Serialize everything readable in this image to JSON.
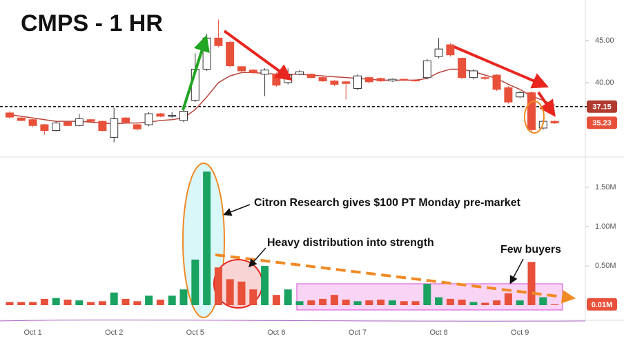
{
  "chart_data": [
    {
      "type": "candlestick",
      "title": "CMPS - 1 HR",
      "categories": [
        null,
        null,
        "Oct 1",
        null,
        null,
        null,
        null,
        null,
        null,
        "Oct 2",
        null,
        null,
        null,
        null,
        null,
        null,
        "Oct 5",
        null,
        null,
        null,
        null,
        null,
        null,
        "Oct 6",
        null,
        null,
        null,
        null,
        null,
        null,
        "Oct 7",
        null,
        null,
        null,
        null,
        null,
        null,
        "Oct 8",
        null,
        null,
        null,
        null,
        null,
        null,
        "Oct 9",
        null,
        null,
        null
      ],
      "open": [
        36.4,
        35.8,
        35.6,
        35.0,
        34.3,
        35.3,
        34.9,
        35.6,
        35.4,
        33.5,
        35.8,
        35.0,
        35.0,
        36.3,
        36.0,
        35.5,
        37.9,
        41.6,
        45.3,
        44.8,
        41.9,
        41.5,
        41.0,
        41.0,
        40.0,
        41.0,
        41.0,
        40.6,
        40.2,
        40.1,
        39.3,
        40.6,
        40.5,
        40.2,
        40.4,
        40.3,
        40.6,
        43.1,
        44.5,
        42.9,
        40.6,
        40.6,
        40.9,
        39.4,
        38.3,
        38.8,
        34.6,
        35.4
      ],
      "high": [
        36.6,
        35.9,
        35.7,
        35.1,
        35.4,
        35.4,
        36.3,
        35.7,
        35.5,
        37.0,
        35.9,
        35.1,
        36.5,
        36.4,
        36.5,
        36.8,
        43.5,
        45.8,
        47.5,
        45.0,
        42.0,
        41.6,
        41.7,
        41.2,
        41.7,
        41.5,
        41.1,
        40.7,
        40.3,
        40.2,
        41.0,
        40.7,
        40.6,
        40.5,
        40.5,
        40.4,
        42.8,
        45.3,
        44.7,
        43.0,
        41.6,
        40.8,
        41.0,
        39.6,
        39.0,
        39.0,
        35.6,
        35.5
      ],
      "low": [
        35.7,
        35.4,
        34.7,
        33.8,
        34.2,
        34.8,
        34.8,
        35.3,
        34.2,
        32.9,
        35.1,
        34.3,
        34.8,
        35.9,
        35.8,
        35.3,
        37.7,
        41.4,
        44.2,
        41.8,
        41.3,
        41.0,
        38.4,
        39.5,
        39.8,
        40.9,
        40.5,
        40.1,
        39.6,
        38.0,
        39.1,
        39.9,
        40.1,
        40.1,
        40.2,
        40.1,
        40.4,
        42.9,
        43.1,
        40.4,
        40.4,
        40.3,
        39.0,
        37.5,
        38.2,
        34.2,
        34.4,
        35.1
      ],
      "close": [
        35.9,
        35.5,
        34.9,
        34.3,
        35.2,
        34.9,
        35.7,
        35.4,
        34.3,
        35.7,
        35.3,
        34.5,
        36.3,
        36.0,
        36.1,
        36.6,
        41.6,
        45.3,
        44.4,
        42.0,
        41.4,
        41.2,
        41.5,
        39.7,
        40.9,
        41.3,
        40.6,
        40.2,
        39.8,
        39.9,
        40.8,
        40.1,
        40.2,
        40.4,
        40.3,
        40.2,
        42.6,
        44.0,
        43.3,
        40.6,
        41.4,
        40.5,
        39.2,
        37.7,
        38.8,
        34.4,
        35.4,
        35.2
      ],
      "ma": {
        "color": "#b5453a",
        "values": [
          36.2,
          36.0,
          35.8,
          35.6,
          35.4,
          35.4,
          35.4,
          35.3,
          35.2,
          35.1,
          35.2,
          35.2,
          35.3,
          35.5,
          35.6,
          35.8,
          36.8,
          38.3,
          40.0,
          40.8,
          41.2,
          41.2,
          41.1,
          41.0,
          41.0,
          41.0,
          40.9,
          40.8,
          40.7,
          40.6,
          40.5,
          40.4,
          40.3,
          40.3,
          40.3,
          40.3,
          40.5,
          41.2,
          41.6,
          41.6,
          41.3,
          40.9,
          40.5,
          39.8,
          39.2,
          38.4,
          37.9,
          37.3
        ]
      },
      "up_color": "#1aa260",
      "down_color": "#e8503a",
      "ylim": [
        31.4,
        49.5
      ],
      "yticks": [
        {
          "value": 40,
          "label": "40.00"
        },
        {
          "value": 45,
          "label": "45.00"
        }
      ],
      "reference_line": {
        "value": 37.15,
        "label": "37.15",
        "color": "#b03a2e"
      },
      "last_price": {
        "value": 35.23,
        "label": "35.23",
        "color": "#e8503a"
      }
    },
    {
      "type": "bar",
      "values": [
        40000,
        40000,
        40000,
        80000,
        90000,
        70000,
        60000,
        40000,
        50000,
        160000,
        80000,
        50000,
        120000,
        70000,
        120000,
        200000,
        580000,
        1700000,
        480000,
        330000,
        300000,
        200000,
        500000,
        130000,
        200000,
        50000,
        60000,
        80000,
        130000,
        70000,
        50000,
        60000,
        70000,
        60000,
        50000,
        50000,
        270000,
        100000,
        80000,
        70000,
        40000,
        30000,
        60000,
        150000,
        60000,
        550000,
        100000,
        10000
      ],
      "ylim": [
        0,
        1850000
      ],
      "yticks": [
        {
          "value": 500000,
          "label": "0.50M"
        },
        {
          "value": 1000000,
          "label": "1.00M"
        },
        {
          "value": 1500000,
          "label": "1.50M"
        }
      ],
      "last_value": {
        "value": 10000,
        "label": "0.01M",
        "color": "#e8503a"
      },
      "annotations": [
        "Citron Research gives $100 PT Monday pre-market",
        "Heavy distribution into strength",
        "Few buyers"
      ]
    }
  ]
}
